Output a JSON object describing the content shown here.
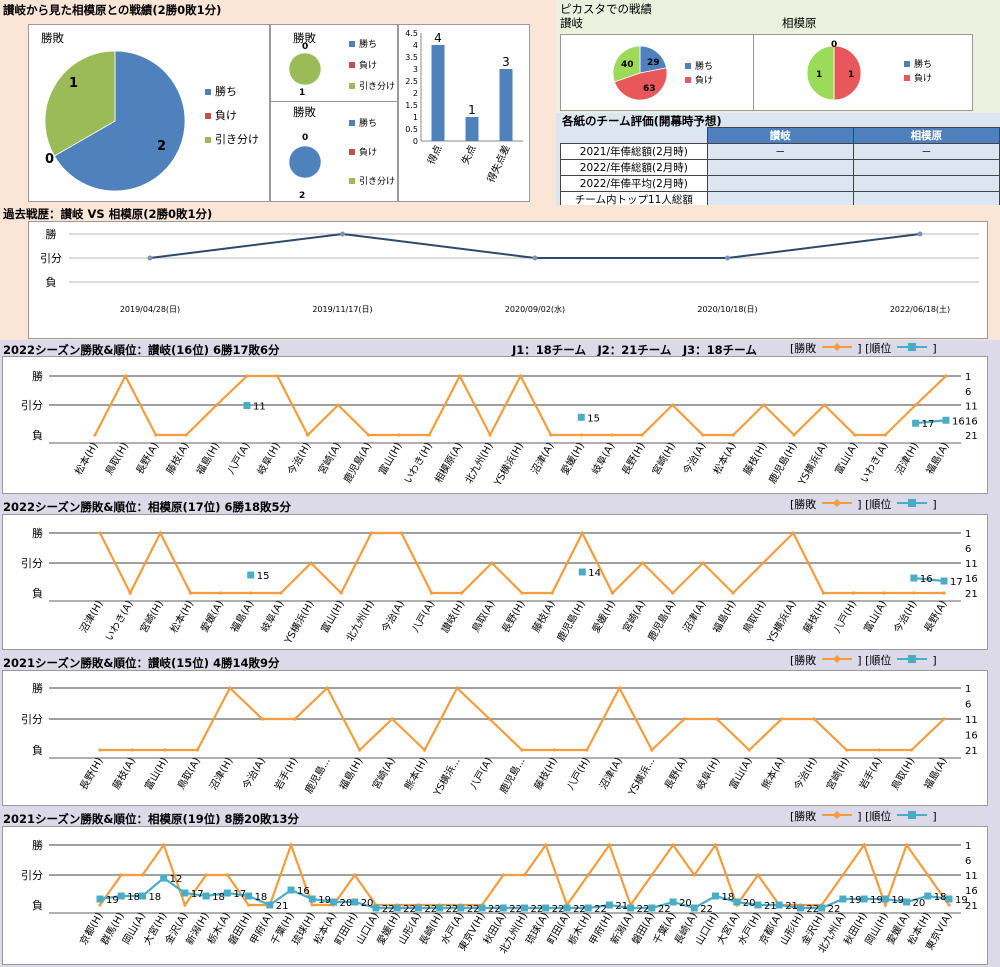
{
  "head_to_head": {
    "title": "讃岐から見た相模原との戦績(2勝0敗1分)",
    "big_pie": {
      "title": "勝敗",
      "slices": [
        {
          "label": "勝ち",
          "value": 2,
          "color": "#4f81bd"
        },
        {
          "label": "負け",
          "value": 0,
          "color": "#c0504d"
        },
        {
          "label": "引き分け",
          "value": 1,
          "color": "#9bbb59"
        }
      ]
    },
    "mini_pie_1": {
      "title": "勝敗",
      "slices": [
        {
          "label": "勝ち",
          "value": 0,
          "color": "#4f81bd"
        },
        {
          "label": "負け",
          "value": 0,
          "color": "#c0504d"
        },
        {
          "label": "引き分け",
          "value": 1,
          "color": "#9bbb59"
        }
      ]
    },
    "mini_pie_2": {
      "title": "勝敗",
      "slices": [
        {
          "label": "勝ち",
          "value": 2,
          "color": "#4f81bd"
        },
        {
          "label": "負け",
          "value": 0,
          "color": "#c0504d"
        },
        {
          "label": "引き分け",
          "value": 0,
          "color": "#9bbb59"
        }
      ]
    },
    "bar": {
      "categories": [
        "得点",
        "失点",
        "得失点差"
      ],
      "values": [
        4,
        1,
        3
      ],
      "ylim": [
        0,
        4.5
      ],
      "yticks": [
        "0",
        "0.5",
        "1",
        "1.5",
        "2",
        "2.5",
        "3",
        "3.5",
        "4",
        "4.5"
      ]
    }
  },
  "picasta": {
    "title": "ピカスタでの戦績",
    "sanuki": {
      "label": "讃岐",
      "slices": [
        {
          "label": "勝ち",
          "value": 29,
          "color": "#4f81bd"
        },
        {
          "label": "負け",
          "value": 63,
          "color": "#e8585a"
        },
        {
          "label": "引き分け",
          "value": 40,
          "color": "#9bdb59"
        }
      ]
    },
    "sagamihara": {
      "label": "相模原",
      "slices": [
        {
          "label": "勝ち",
          "value": 0,
          "color": "#4f81bd"
        },
        {
          "label": "負け",
          "value": 1,
          "color": "#e8585a"
        },
        {
          "label": "引き分け",
          "value": 1,
          "color": "#9bdb59"
        }
      ]
    },
    "legend_win": "勝ち",
    "legend_loss": "負け"
  },
  "evaluation": {
    "title": "各紙のチーム評価(開幕時予想)",
    "col1": "讃岐",
    "col2": "相模原",
    "rows": [
      {
        "label": "2021/年俸総額(2月時)",
        "v1": "－",
        "v2": "－"
      },
      {
        "label": "2022/年俸総額(2月時)",
        "v1": "",
        "v2": ""
      },
      {
        "label": "2022/年俸平均(2月時)",
        "v1": "",
        "v2": ""
      },
      {
        "label": "チーム内トップ11人総額",
        "v1": "",
        "v2": ""
      }
    ]
  },
  "past": {
    "title": "過去戦歴：讃岐 VS 相模原(2勝0敗1分)",
    "ylabels": [
      "勝",
      "引分",
      "負"
    ],
    "dates": [
      "2019/04/28(日)",
      "2019/11/17(日)",
      "2020/09/02(水)",
      "2020/10/18(日)",
      "2022/06/18(土)"
    ],
    "results": [
      0,
      1,
      0,
      0,
      1
    ]
  },
  "legend": {
    "result": "[勝敗",
    "rank": "] [順位",
    "close": "]"
  },
  "leagues_note": "J1：18チーム　J2：21チーム　J3：18チーム",
  "ylabels_season": [
    "勝",
    "引分",
    "負"
  ],
  "rank_ticks": [
    "1",
    "6",
    "11",
    "16",
    "21"
  ],
  "chart_data": [
    {
      "type": "line",
      "title": "2022シーズン勝敗&順位：讃岐(16位) 6勝17敗6分",
      "categories": [
        "松本(H)",
        "鳥取(H)",
        "長野(A)",
        "藤枝(A)",
        "福島(H)",
        "八戸(A)",
        "岐阜(H)",
        "今治(H)",
        "宮崎(A)",
        "鹿児島(A)",
        "富山(H)",
        "いわき(H)",
        "相模原(A)",
        "北九州(H)",
        "YS横浜(H)",
        "沼津(A)",
        "愛媛(H)",
        "岐阜(A)",
        "長野(H)",
        "宮崎(H)",
        "今治(A)",
        "松本(A)",
        "藤枝(H)",
        "鹿児島(H)",
        "YS横浜(A)",
        "富山(A)",
        "いわき(A)",
        "沼津(H)",
        "福島(A)"
      ],
      "series": [
        {
          "name": "勝敗",
          "values": [
            -1,
            1,
            -1,
            -1,
            0,
            1,
            1,
            -1,
            0,
            -1,
            -1,
            -1,
            1,
            -1,
            1,
            -1,
            -1,
            -1,
            -1,
            0,
            -1,
            -1,
            0,
            -1,
            0,
            -1,
            -1,
            0,
            1
          ]
        },
        {
          "name": "順位",
          "values": [
            null,
            null,
            null,
            null,
            null,
            11,
            null,
            null,
            null,
            null,
            null,
            null,
            null,
            null,
            null,
            null,
            15,
            null,
            null,
            null,
            null,
            null,
            null,
            null,
            null,
            null,
            null,
            17,
            16
          ]
        }
      ]
    },
    {
      "type": "line",
      "title": "2022シーズン勝敗&順位：相模原(17位) 6勝18敗5分",
      "categories": [
        "沼津(H)",
        "いわき(A)",
        "宮崎(H)",
        "松本(H)",
        "愛媛(A)",
        "福島(A)",
        "岐阜(A)",
        "YS横浜(H)",
        "富山(H)",
        "北九州(H)",
        "今治(A)",
        "八戸(A)",
        "讃岐(H)",
        "鳥取(A)",
        "長野(H)",
        "藤枝(A)",
        "鹿児島(H)",
        "愛媛(H)",
        "宮崎(A)",
        "鹿児島(A)",
        "沼津(A)",
        "福島(H)",
        "鳥取(H)",
        "YS横浜(A)",
        "藤枝(H)",
        "八戸(H)",
        "富山(A)",
        "今治(H)",
        "長野(A)"
      ],
      "series": [
        {
          "name": "勝敗",
          "values": [
            1,
            -1,
            1,
            -1,
            -1,
            -1,
            -1,
            0,
            -1,
            1,
            1,
            -1,
            -1,
            0,
            -1,
            -1,
            1,
            -1,
            0,
            -1,
            0,
            -1,
            0,
            1,
            -1,
            -1,
            -1,
            -1,
            -1
          ]
        },
        {
          "name": "順位",
          "values": [
            null,
            null,
            null,
            null,
            null,
            15,
            null,
            null,
            null,
            null,
            null,
            null,
            null,
            null,
            null,
            null,
            14,
            null,
            null,
            null,
            null,
            null,
            null,
            null,
            null,
            null,
            null,
            16,
            17
          ]
        }
      ]
    },
    {
      "type": "line",
      "title": "2021シーズン勝敗&順位：讃岐(15位) 4勝14敗9分",
      "categories": [
        "長野(H)",
        "藤枝(A)",
        "富山(H)",
        "鳥取(A)",
        "沼津(H)",
        "今治(A)",
        "岩手(H)",
        "鹿児島...",
        "福島(H)",
        "宮崎(A)",
        "熊本(H)",
        "YS横浜...",
        "八戸(A)",
        "鹿児島...",
        "藤枝(H)",
        "八戸(H)",
        "沼津(A)",
        "YS横浜...",
        "長野(A)",
        "岐阜(H)",
        "富山(A)",
        "熊本(A)",
        "今治(H)",
        "宮崎(H)",
        "岩手(A)",
        "鳥取(H)",
        "福島(A)"
      ],
      "series": [
        {
          "name": "勝敗",
          "values": [
            -1,
            -1,
            -1,
            -1,
            1,
            0,
            0,
            1,
            -1,
            0,
            -1,
            1,
            0,
            -1,
            -1,
            -1,
            1,
            -1,
            0,
            0,
            -1,
            0,
            0,
            -1,
            -1,
            -1,
            0
          ]
        }
      ]
    },
    {
      "type": "line",
      "title": "2021シーズン勝敗&順位：相模原(19位) 8勝20敗13分",
      "categories": [
        "京都(H)",
        "群馬(H)",
        "岡山(A)",
        "大宮(H)",
        "金沢(A)",
        "新潟(H)",
        "栃木(A)",
        "磐田(H)",
        "甲府(A)",
        "千葉(H)",
        "琉球(H)",
        "松本(A)",
        "町田(H)",
        "山口(A)",
        "愛媛(H)",
        "山形(A)",
        "長崎(H)",
        "水戸(A)",
        "東京V(H)",
        "秋田(A)",
        "北九州(H)",
        "琉球(A)",
        "町田(A)",
        "栃木(H)",
        "甲府(H)",
        "新潟(A)",
        "磐田(A)",
        "千葉(A)",
        "長崎(A)",
        "山口(H)",
        "大宮(A)",
        "水戸(H)",
        "京都(A)",
        "山形(H)",
        "金沢(H)",
        "北九州(A)",
        "秋田(H)",
        "岡山(H)",
        "愛媛(A)",
        "松本(H)",
        "東京V(A)"
      ],
      "series": [
        {
          "name": "勝敗",
          "values": [
            -1,
            0,
            0,
            1,
            -1,
            0,
            0,
            -1,
            -1,
            1,
            -1,
            -1,
            0,
            -1,
            -1,
            -1,
            -1,
            -1,
            -1,
            0,
            0,
            1,
            -1,
            0,
            1,
            -1,
            0,
            1,
            0,
            1,
            -1,
            0,
            -1,
            -1,
            -1,
            0,
            1,
            -1,
            1,
            0,
            -1
          ]
        },
        {
          "name": "順位",
          "values": [
            19,
            18,
            18,
            12,
            17,
            18,
            17,
            18,
            21,
            16,
            19,
            20,
            20,
            22,
            22,
            22,
            22,
            22,
            22,
            22,
            22,
            22,
            22,
            22,
            21,
            22,
            22,
            20,
            22,
            18,
            20,
            21,
            21,
            22,
            22,
            19,
            19,
            19,
            20,
            18,
            19
          ]
        }
      ]
    }
  ],
  "colors": {
    "result_line": "#f59c3c",
    "rank_line": "#4bacc6",
    "past_line": "#2e4a6b"
  }
}
